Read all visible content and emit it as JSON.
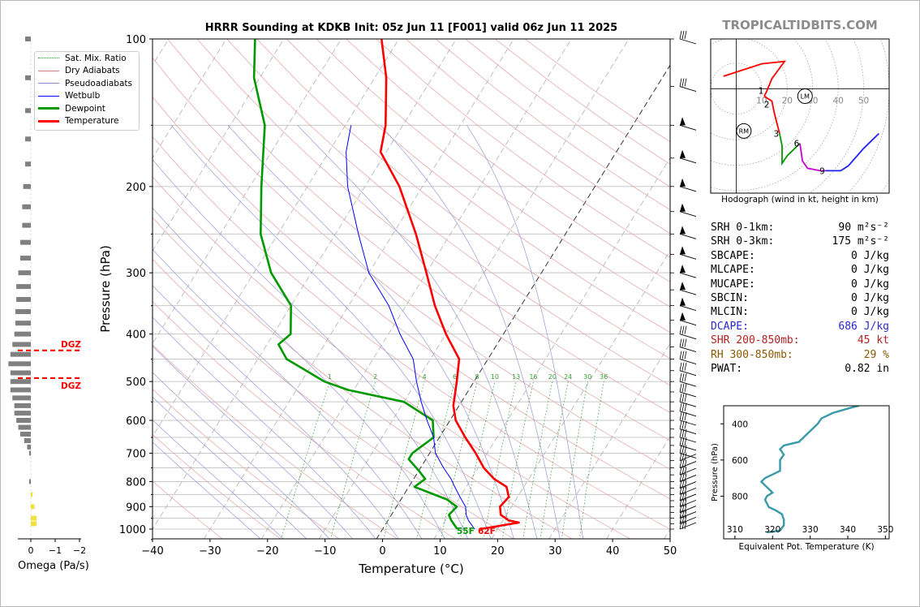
{
  "title": "HRRR Sounding at KDKB Init: 05z Jun 11 [F001] valid 06z Jun 11 2025",
  "brand": "TROPICALTIDBITS.COM",
  "skewt": {
    "xlabel": "Temperature (°C)",
    "ylabel": "Pressure (hPa)",
    "x_ticks": [
      "−40",
      "−30",
      "−20",
      "−10",
      "0",
      "10",
      "20",
      "30",
      "40",
      "50"
    ],
    "y_ticks": [
      "100",
      "200",
      "300",
      "400",
      "500",
      "600",
      "700",
      "800",
      "900",
      "1000"
    ],
    "mixing_ratio_labels": [
      "1",
      "2",
      "4",
      "6",
      "8",
      "10",
      "13",
      "16",
      "20",
      "24",
      "30",
      "36"
    ],
    "surface_dewpoint_label": "55F",
    "surface_temp_label": "62F"
  },
  "legend": [
    {
      "label": "Sat. Mix. Ratio",
      "color": "#2ca02c",
      "style": "dotted"
    },
    {
      "label": "Dry Adiabats",
      "color": "#d08080",
      "style": "thin"
    },
    {
      "label": "Pseudoadiabats",
      "color": "#8c8cd0",
      "style": "thin"
    },
    {
      "label": "Wetbulb",
      "color": "#0000ff",
      "style": "solid"
    },
    {
      "label": "Dewpoint",
      "color": "#009900",
      "style": "bold"
    },
    {
      "label": "Temperature",
      "color": "#ff0000",
      "style": "bold"
    }
  ],
  "omega": {
    "xlabel": "Omega (Pa/s)",
    "ticks": [
      "0",
      "−1",
      "−2"
    ],
    "dgz_label_1": "DGZ",
    "dgz_label_2": "DGZ"
  },
  "hodograph": {
    "caption": "Hodograph (wind in kt, height in km)",
    "ring_labels": [
      "10",
      "20",
      "30",
      "40",
      "50"
    ],
    "height_labels": [
      "1",
      "2",
      "3",
      "6",
      "9"
    ],
    "rm_label": "RM",
    "lm_label": "LM"
  },
  "stats": [
    {
      "label": "SRH 0-1km:",
      "value": "90 m²s⁻²",
      "color": "#000000"
    },
    {
      "label": "SRH 0-3km:",
      "value": "175 m²s⁻²",
      "color": "#000000"
    },
    {
      "label": "SBCAPE:",
      "value": "0 J/kg",
      "color": "#000000"
    },
    {
      "label": "MLCAPE:",
      "value": "0 J/kg",
      "color": "#000000"
    },
    {
      "label": "MUCAPE:",
      "value": "0 J/kg",
      "color": "#000000"
    },
    {
      "label": "SBCIN:",
      "value": "0 J/kg",
      "color": "#000000"
    },
    {
      "label": "MLCIN:",
      "value": "0 J/kg",
      "color": "#000000"
    },
    {
      "label": "DCAPE:",
      "value": "686 J/kg",
      "color": "#2a2ad0"
    },
    {
      "label": "SHR 200-850mb:",
      "value": "45 kt",
      "color": "#b22222"
    },
    {
      "label": "RH 300-850mb:",
      "value": "29 %",
      "color": "#8b5a00"
    },
    {
      "label": "PWAT:",
      "value": "0.82 in",
      "color": "#000000"
    }
  ],
  "thetae": {
    "ylabel": "Pressure (hPa)",
    "xlabel": "Equivalent Pot. Temperature (K)",
    "x_ticks": [
      "310",
      "320",
      "330",
      "340",
      "350"
    ],
    "y_ticks": [
      "400",
      "600",
      "800"
    ]
  },
  "chart_data": [
    {
      "type": "line",
      "name": "skew-T",
      "title": "HRRR Sounding at KDKB Init: 05z Jun 11 [F001] valid 06z Jun 11 2025",
      "xlabel": "Temperature (°C)",
      "ylabel": "Pressure (hPa)",
      "xlim": [
        -40,
        50
      ],
      "ylim": [
        1050,
        100
      ],
      "y_scale": "log",
      "series": [
        {
          "name": "Temperature",
          "color": "#ff0000",
          "points": [
            [
              1000,
              17
            ],
            [
              970,
              23
            ],
            [
              960,
              21
            ],
            [
              935,
              19
            ],
            [
              900,
              18
            ],
            [
              860,
              18.5
            ],
            [
              820,
              17
            ],
            [
              790,
              14
            ],
            [
              750,
              11
            ],
            [
              700,
              8
            ],
            [
              650,
              4.5
            ],
            [
              600,
              1
            ],
            [
              560,
              -1
            ],
            [
              500,
              -3
            ],
            [
              450,
              -5
            ],
            [
              400,
              -10
            ],
            [
              350,
              -15
            ],
            [
              300,
              -20
            ],
            [
              250,
              -26
            ],
            [
              200,
              -34
            ],
            [
              170,
              -41
            ],
            [
              150,
              -43
            ],
            [
              120,
              -48
            ],
            [
              100,
              -53
            ]
          ]
        },
        {
          "name": "Dewpoint",
          "color": "#009900",
          "points": [
            [
              1000,
              13
            ],
            [
              960,
              11
            ],
            [
              935,
              10
            ],
            [
              900,
              10.5
            ],
            [
              870,
              8
            ],
            [
              820,
              1
            ],
            [
              790,
              2
            ],
            [
              760,
              0
            ],
            [
              720,
              -3
            ],
            [
              700,
              -3
            ],
            [
              650,
              -1
            ],
            [
              600,
              -3
            ],
            [
              550,
              -10
            ],
            [
              520,
              -21
            ],
            [
              500,
              -26
            ],
            [
              450,
              -35
            ],
            [
              420,
              -38
            ],
            [
              400,
              -37
            ],
            [
              350,
              -40
            ],
            [
              300,
              -47
            ],
            [
              250,
              -53
            ],
            [
              200,
              -58
            ],
            [
              150,
              -64
            ],
            [
              120,
              -71
            ],
            [
              100,
              -75
            ]
          ]
        },
        {
          "name": "Wetbulb",
          "color": "#0000ff",
          "points": [
            [
              1000,
              16
            ],
            [
              960,
              14
            ],
            [
              935,
              13
            ],
            [
              900,
              12
            ],
            [
              860,
              10
            ],
            [
              820,
              8
            ],
            [
              790,
              6.5
            ],
            [
              750,
              4
            ],
            [
              700,
              1
            ],
            [
              650,
              -1
            ],
            [
              600,
              -4
            ],
            [
              550,
              -7
            ],
            [
              500,
              -10
            ],
            [
              450,
              -13
            ],
            [
              400,
              -18
            ],
            [
              350,
              -23
            ],
            [
              300,
              -30
            ],
            [
              250,
              -36
            ],
            [
              200,
              -43
            ],
            [
              170,
              -47
            ],
            [
              150,
              -49
            ]
          ]
        }
      ]
    },
    {
      "type": "bar",
      "name": "omega",
      "xlabel": "Omega (Pa/s)",
      "xlim": [
        0.3,
        -2
      ],
      "levels": [
        100,
        120,
        140,
        160,
        180,
        200,
        220,
        240,
        260,
        280,
        300,
        320,
        340,
        360,
        380,
        400,
        420,
        440,
        460,
        480,
        500,
        520,
        540,
        560,
        580,
        600,
        620,
        640,
        660,
        680,
        700,
        800,
        850,
        900,
        950,
        975
      ],
      "values": [
        -0.05,
        -0.05,
        -0.05,
        -0.05,
        -0.05,
        -0.07,
        -0.08,
        -0.08,
        -0.1,
        -0.1,
        -0.12,
        -0.14,
        -0.14,
        -0.15,
        -0.15,
        -0.16,
        -0.18,
        -0.2,
        -0.22,
        -0.2,
        -0.2,
        -0.2,
        -0.18,
        -0.16,
        -0.16,
        -0.14,
        -0.12,
        -0.1,
        -0.06,
        -0.03,
        -0.01,
        -0.01,
        0.01,
        0.03,
        0.05,
        0.05
      ],
      "dgz_levels": [
        432,
        492
      ]
    },
    {
      "type": "line",
      "name": "hodograph",
      "xlim": [
        -10,
        60
      ],
      "ylim": [
        -42,
        20
      ],
      "series": [
        {
          "name": "0-1km",
          "color": "#ff0000",
          "points": [
            [
              -5,
              5
            ],
            [
              10,
              10
            ],
            [
              19,
              11
            ],
            [
              14,
              4
            ],
            [
              12,
              -1
            ],
            [
              11,
              -3
            ]
          ]
        },
        {
          "name": "1-3km",
          "color": "#ff0000",
          "points": [
            [
              11,
              -3
            ],
            [
              14,
              -5
            ],
            [
              15,
              -10
            ],
            [
              17,
              -18
            ]
          ]
        },
        {
          "name": "3-6km",
          "color": "#009900",
          "points": [
            [
              17,
              -18
            ],
            [
              18,
              -23
            ],
            [
              18,
              -30
            ],
            [
              20,
              -27
            ],
            [
              25,
              -22
            ]
          ]
        },
        {
          "name": "6-9km",
          "color": "#cc00cc",
          "points": [
            [
              25,
              -22
            ],
            [
              26,
              -29
            ],
            [
              28,
              -32
            ],
            [
              33,
              -33
            ],
            [
              35,
              -33
            ]
          ]
        },
        {
          "name": "9+km",
          "color": "#1f1fff",
          "points": [
            [
              35,
              -33
            ],
            [
              41,
              -33
            ],
            [
              44,
              -31
            ],
            [
              50,
              -24
            ],
            [
              56,
              -18
            ]
          ]
        }
      ],
      "rm": [
        3,
        -17
      ],
      "lm": [
        27,
        -3
      ]
    },
    {
      "type": "line",
      "name": "theta-e",
      "xlabel": "Equivalent Pot. Temperature (K)",
      "ylabel": "Pressure (hPa)",
      "xlim": [
        307,
        351
      ],
      "ylim": [
        1000,
        300
      ],
      "series": [
        {
          "name": "Theta-E",
          "color": "#3a9aa8",
          "points": [
            [
              1000,
              318.5
            ],
            [
              990,
              322
            ],
            [
              960,
              323
            ],
            [
              930,
              323
            ],
            [
              900,
              322.5
            ],
            [
              880,
              321
            ],
            [
              860,
              319
            ],
            [
              820,
              318
            ],
            [
              800,
              318.5
            ],
            [
              780,
              320
            ],
            [
              740,
              318
            ],
            [
              720,
              317
            ],
            [
              700,
              318
            ],
            [
              680,
              320
            ],
            [
              660,
              322
            ],
            [
              630,
              322
            ],
            [
              600,
              322
            ],
            [
              570,
              323
            ],
            [
              540,
              322
            ],
            [
              520,
              323
            ],
            [
              500,
              327
            ],
            [
              480,
              328
            ],
            [
              450,
              329.5
            ],
            [
              420,
              331
            ],
            [
              400,
              332
            ],
            [
              370,
              333
            ],
            [
              340,
              336
            ],
            [
              310,
              341
            ],
            [
              300,
              343
            ]
          ]
        }
      ]
    }
  ]
}
